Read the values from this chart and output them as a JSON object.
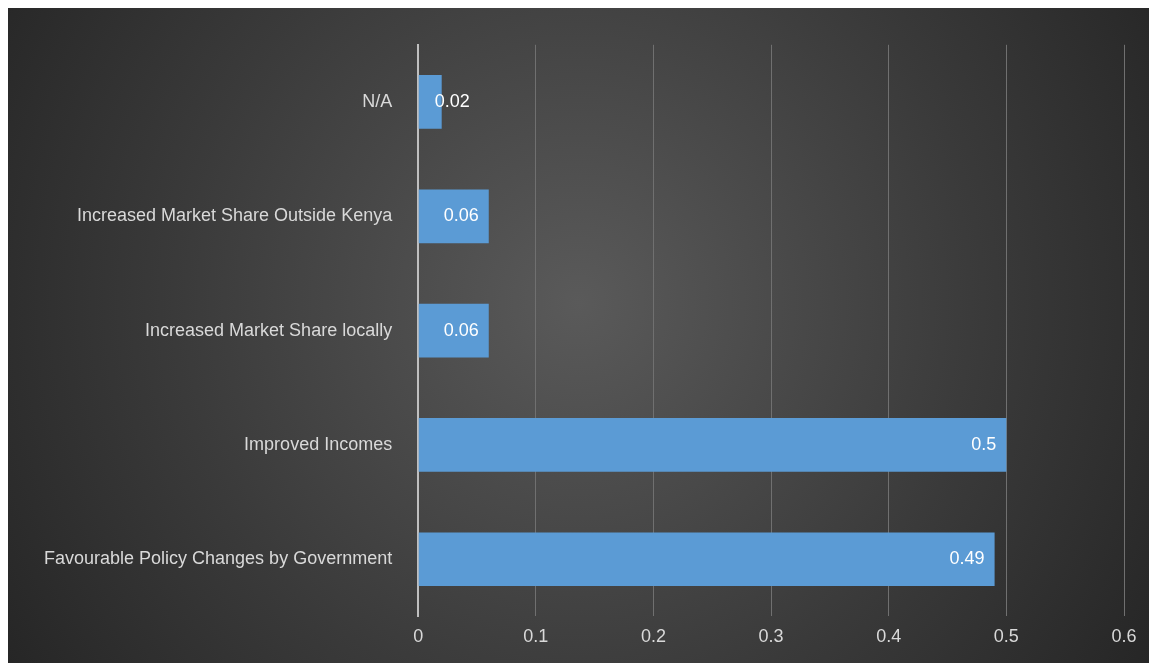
{
  "chart_data": {
    "type": "bar",
    "orientation": "horizontal",
    "categories": [
      "N/A",
      "Increased Market Share Outside Kenya",
      "Increased Market Share locally",
      "Improved Incomes",
      "Favourable Policy Changes by Government"
    ],
    "values": [
      0.02,
      0.06,
      0.06,
      0.5,
      0.49
    ],
    "color": "#5b9bd5",
    "xlim": [
      0,
      0.6
    ],
    "xticks": [
      0,
      0.1,
      0.2,
      0.3,
      0.4,
      0.5,
      0.6
    ],
    "grid": "x",
    "legend": false,
    "data_labels": true
  }
}
